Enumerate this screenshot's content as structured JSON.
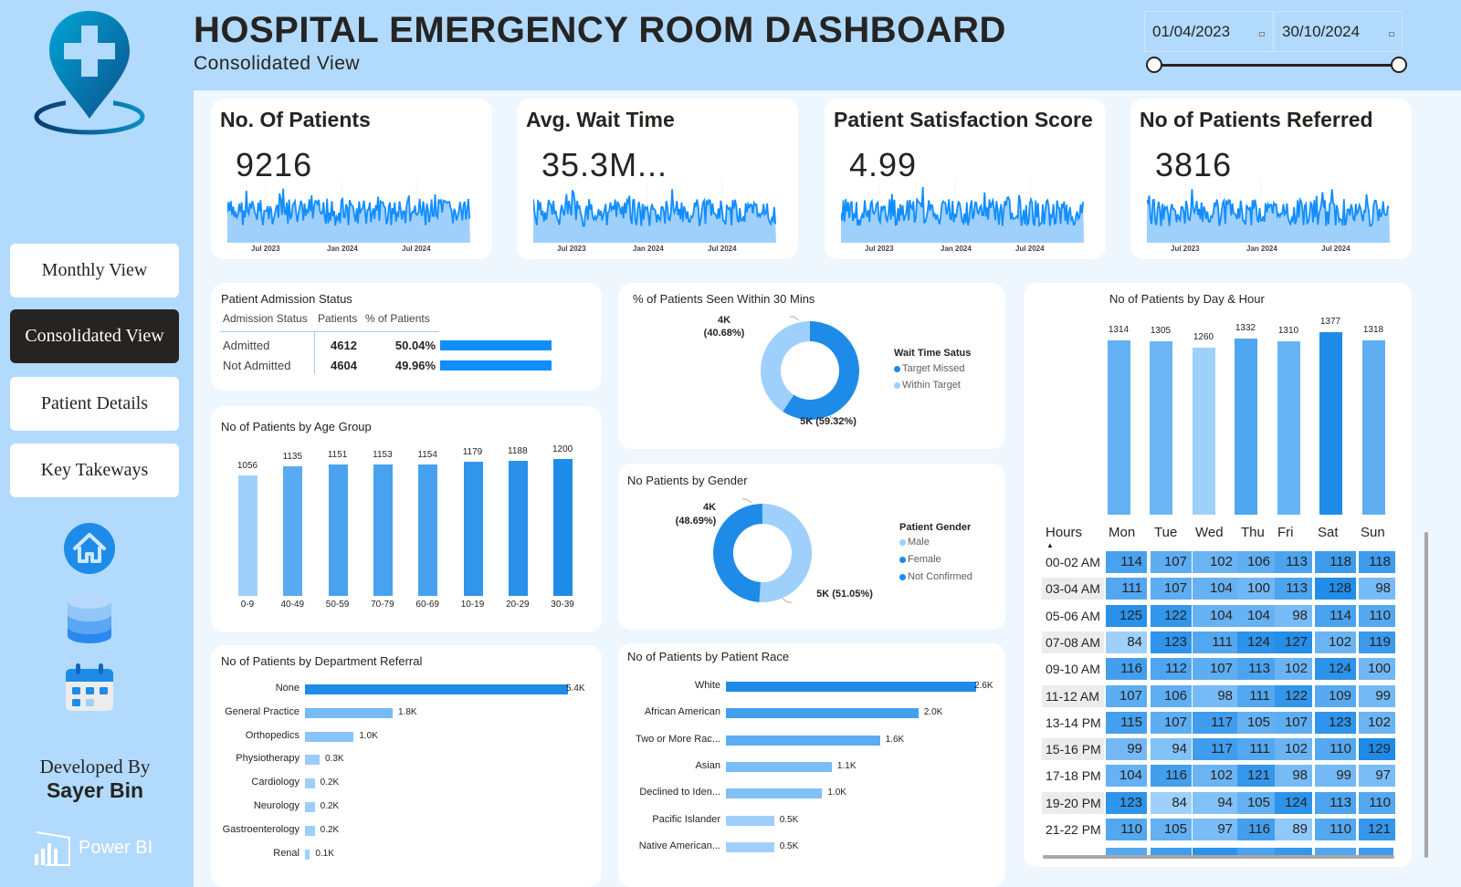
{
  "header": {
    "title": "HOSPITAL EMERGENCY ROOM DASHBOARD",
    "subtitle": "Consolidated View",
    "date_start": "01/04/2023",
    "date_end": "30/10/2024"
  },
  "sidebar": {
    "logo_icon": "hospital-location-pin-icon",
    "nav": [
      {
        "label": "Monthly View",
        "active": false
      },
      {
        "label": "Consolidated View",
        "active": true
      },
      {
        "label": "Patient Details",
        "active": false
      },
      {
        "label": "Key Takeways",
        "active": false
      }
    ],
    "icons": [
      "home-icon",
      "database-icon",
      "calendar-icon"
    ],
    "developed_by_label": "Developed By",
    "developer_name": "Sayer Bin",
    "brand": "Power BI"
  },
  "colors": {
    "accent": "#118dff",
    "dark_blue": "#1e8be8",
    "mid_blue": "#4fa7f0",
    "light_blue": "#9fd0fc",
    "page_bg": "#b1dafd",
    "panel_bg": "#eef6fe"
  },
  "kpis": [
    {
      "title": "No. Of Patients",
      "value": "9216",
      "axis": [
        "Jul 2023",
        "Jan 2024",
        "Jul 2024"
      ]
    },
    {
      "title": "Avg. Wait Time",
      "value": "35.3M...",
      "axis": [
        "Jul 2023",
        "Jan 2024",
        "Jul 2024"
      ]
    },
    {
      "title": "Patient Satisfaction Score",
      "value": "4.99",
      "axis": [
        "Jul 2023",
        "Jan 2024",
        "Jul 2024"
      ]
    },
    {
      "title": "No of Patients Referred",
      "value": "3816",
      "axis": [
        "Jul 2023",
        "Jan 2024",
        "Jul 2024"
      ]
    }
  ],
  "admission": {
    "title": "Patient Admission Status",
    "columns": [
      "Admission Status",
      "Patients",
      "% of Patients"
    ],
    "rows": [
      {
        "status": "Admitted",
        "patients": "4612",
        "pct": "50.04%",
        "fraction": 0.5004
      },
      {
        "status": "Not Admitted",
        "patients": "4604",
        "pct": "49.96%",
        "fraction": 0.4996
      }
    ]
  },
  "chart_data": [
    {
      "id": "age_group",
      "type": "bar",
      "title": "No of Patients by Age Group",
      "categories": [
        "0-9",
        "40-49",
        "50-59",
        "70-79",
        "60-69",
        "10-19",
        "20-29",
        "30-39"
      ],
      "values": [
        1056,
        1135,
        1151,
        1153,
        1154,
        1179,
        1188,
        1200
      ],
      "value_labels": [
        "1056",
        "1135",
        "1151",
        "1153",
        "1154",
        "1179",
        "1188",
        "1200"
      ],
      "xlabel": "",
      "ylabel": "",
      "ylim": [
        0,
        1200
      ]
    },
    {
      "id": "wait_time",
      "type": "pie",
      "title": "% of Patients Seen Within 30 Mins",
      "legend_title": "Wait Time Satus",
      "legend_position": "right",
      "slices": [
        {
          "label": "Target Missed",
          "value": 59.32,
          "display": "5K (59.32%)",
          "color": "#1e8be8"
        },
        {
          "label": "Within Target",
          "value": 40.68,
          "display_top": "4K",
          "display_bottom": "(40.68%)",
          "color": "#9fd0fc"
        }
      ]
    },
    {
      "id": "gender",
      "type": "pie",
      "title": "No Patients by Gender",
      "legend_title": "Patient Gender",
      "legend_position": "right",
      "slices": [
        {
          "label": "Male",
          "value": 51.05,
          "display": "5K (51.05%)",
          "color": "#9fd0fc"
        },
        {
          "label": "Female",
          "value": 48.69,
          "display_top": "4K",
          "display_bottom": "(48.69%)",
          "color": "#1e8be8"
        },
        {
          "label": "Not Confirmed",
          "value": 0.26,
          "color": "#118dff"
        }
      ]
    },
    {
      "id": "department",
      "type": "bar",
      "orientation": "horizontal",
      "title": "No of Patients by Department Referral",
      "categories": [
        "None",
        "General Practice",
        "Orthopedics",
        "Physiotherapy",
        "Cardiology",
        "Neurology",
        "Gastroenterology",
        "Renal"
      ],
      "values": [
        5.4,
        1.8,
        1.0,
        0.3,
        0.2,
        0.2,
        0.2,
        0.1
      ],
      "value_labels": [
        "5.4K",
        "1.8K",
        "1.0K",
        "0.3K",
        "0.2K",
        "0.2K",
        "0.2K",
        "0.1K"
      ],
      "unit": "K"
    },
    {
      "id": "race",
      "type": "bar",
      "orientation": "horizontal",
      "title": "No of Patients by Patient Race",
      "categories": [
        "White",
        "African American",
        "Two or More Rac...",
        "Asian",
        "Declined to Iden...",
        "Pacific Islander",
        "Native American..."
      ],
      "values": [
        2.6,
        2.0,
        1.6,
        1.1,
        1.0,
        0.5,
        0.5
      ],
      "value_labels": [
        "2.6K",
        "2.0K",
        "1.6K",
        "1.1K",
        "1.0K",
        "0.5K",
        "0.5K"
      ],
      "unit": "K"
    },
    {
      "id": "day_totals",
      "type": "bar",
      "title": "No of Patients by Day & Hour",
      "categories": [
        "Mon",
        "Tue",
        "Wed",
        "Thu",
        "Fri",
        "Sat",
        "Sun"
      ],
      "values": [
        1314,
        1305,
        1260,
        1332,
        1310,
        1377,
        1318
      ],
      "value_labels": [
        "1314",
        "1305",
        "1260",
        "1332",
        "1310",
        "1377",
        "1318"
      ]
    },
    {
      "id": "day_hour_matrix",
      "type": "heatmap",
      "row_header": "Hours",
      "columns": [
        "Mon",
        "Tue",
        "Wed",
        "Thu",
        "Fri",
        "Sat",
        "Sun"
      ],
      "rows": [
        {
          "label": "00-02 AM",
          "values": [
            114,
            107,
            102,
            106,
            113,
            118,
            118
          ]
        },
        {
          "label": "03-04 AM",
          "values": [
            111,
            107,
            104,
            100,
            113,
            128,
            98
          ]
        },
        {
          "label": "05-06 AM",
          "values": [
            125,
            122,
            104,
            104,
            98,
            114,
            110
          ]
        },
        {
          "label": "07-08 AM",
          "values": [
            84,
            123,
            111,
            124,
            127,
            102,
            119
          ]
        },
        {
          "label": "09-10 AM",
          "values": [
            116,
            112,
            107,
            113,
            102,
            124,
            100
          ]
        },
        {
          "label": "11-12 AM",
          "values": [
            107,
            106,
            98,
            111,
            122,
            109,
            99
          ]
        },
        {
          "label": "13-14 PM",
          "values": [
            115,
            107,
            117,
            105,
            107,
            123,
            102
          ]
        },
        {
          "label": "15-16 PM",
          "values": [
            99,
            94,
            117,
            111,
            102,
            110,
            129
          ]
        },
        {
          "label": "17-18 PM",
          "values": [
            104,
            116,
            102,
            121,
            98,
            99,
            97
          ]
        },
        {
          "label": "19-20 PM",
          "values": [
            123,
            84,
            94,
            105,
            124,
            113,
            110
          ]
        },
        {
          "label": "21-22 PM",
          "values": [
            110,
            105,
            97,
            116,
            89,
            110,
            121
          ]
        }
      ]
    }
  ]
}
